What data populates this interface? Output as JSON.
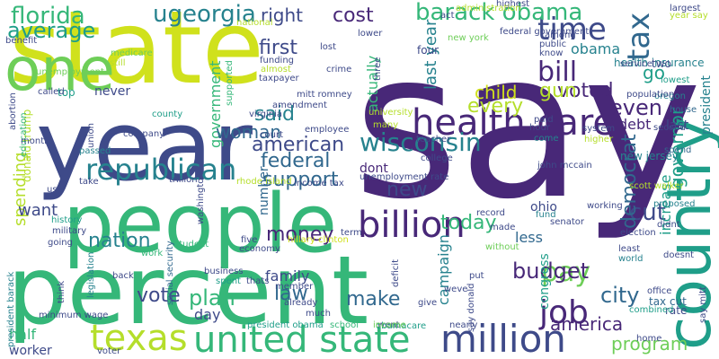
{
  "palette": {
    "background": "#ffffff",
    "c1": "#440154",
    "c2": "#482878",
    "c3": "#3e4a89",
    "c4": "#31688e",
    "c5": "#26828e",
    "c6": "#1f9e89",
    "c7": "#35b779",
    "c8": "#6ece58",
    "c9": "#b5de2b",
    "c10": "#d0e11c"
  },
  "words": [
    {
      "text": "say",
      "color": "#482878"
    },
    {
      "text": "state",
      "color": "#d0e11c"
    },
    {
      "text": "percent",
      "color": "#35b779"
    },
    {
      "text": "year",
      "color": "#3e4a89"
    },
    {
      "text": "people",
      "color": "#35b779"
    },
    {
      "text": "one",
      "color": "#6ece58"
    },
    {
      "text": "country",
      "color": "#1f9e89"
    },
    {
      "text": "health care",
      "color": "#482878"
    },
    {
      "text": "million",
      "color": "#3e4a89"
    },
    {
      "text": "united state",
      "color": "#35b779"
    },
    {
      "text": "texas",
      "color": "#b5de2b"
    },
    {
      "text": "republican",
      "color": "#26828e"
    },
    {
      "text": "billion",
      "color": "#482878"
    },
    {
      "text": "bill",
      "color": "#482878"
    },
    {
      "text": "time",
      "color": "#3e4a89"
    },
    {
      "text": "job",
      "color": "#482878"
    },
    {
      "text": "barack obama",
      "color": "#35b779"
    },
    {
      "text": "tax",
      "color": "#31688e"
    },
    {
      "text": "florida",
      "color": "#35b779"
    },
    {
      "text": "ugeorgia",
      "color": "#26828e"
    },
    {
      "text": "average",
      "color": "#1f9e89"
    },
    {
      "text": "wisconsin",
      "color": "#26828e"
    },
    {
      "text": "pay",
      "color": "#6ece58"
    },
    {
      "text": "american",
      "color": "#3e4a89"
    },
    {
      "text": "cost",
      "color": "#482878"
    },
    {
      "text": "right",
      "color": "#3e4a89"
    },
    {
      "text": "nation",
      "color": "#26828e"
    },
    {
      "text": "money",
      "color": "#482878"
    },
    {
      "text": "today",
      "color": "#35b779"
    },
    {
      "text": "budget",
      "color": "#482878"
    },
    {
      "text": "plan",
      "color": "#35b779"
    },
    {
      "text": "law",
      "color": "#31688e"
    },
    {
      "text": "vote",
      "color": "#3e4a89"
    },
    {
      "text": "make",
      "color": "#31688e"
    },
    {
      "text": "america",
      "color": "#482878"
    },
    {
      "text": "city",
      "color": "#31688e"
    },
    {
      "text": "federal",
      "color": "#31688e"
    },
    {
      "text": "support",
      "color": "#31688e"
    },
    {
      "text": "said",
      "color": "#26828e"
    },
    {
      "text": "every",
      "color": "#b5de2b"
    },
    {
      "text": "first",
      "color": "#3e4a89"
    },
    {
      "text": "government",
      "color": "#35b779"
    },
    {
      "text": "woman",
      "color": "#31688e"
    },
    {
      "text": "new",
      "color": "#3e4a89"
    },
    {
      "text": "child",
      "color": "#d0e11c"
    },
    {
      "text": "voted",
      "color": "#482878"
    },
    {
      "text": "cut",
      "color": "#3e4a89"
    },
    {
      "text": "even",
      "color": "#482878"
    },
    {
      "text": "gun",
      "color": "#b5de2b"
    },
    {
      "text": "last year",
      "color": "#26828e"
    },
    {
      "text": "obama",
      "color": "#26828e"
    },
    {
      "text": "democrat",
      "color": "#31688e"
    },
    {
      "text": "spending",
      "color": "#b5de2b"
    },
    {
      "text": "want",
      "color": "#3e4a89"
    },
    {
      "text": "increase",
      "color": "#1f9e89"
    },
    {
      "text": "governor",
      "color": "#1f9e89"
    },
    {
      "text": "program",
      "color": "#6ece58"
    },
    {
      "text": "half",
      "color": "#35b779"
    },
    {
      "text": "worker",
      "color": "#3e4a89"
    },
    {
      "text": "day",
      "color": "#3e4a89"
    },
    {
      "text": "family",
      "color": "#3e4a89"
    },
    {
      "text": "campaign",
      "color": "#26828e"
    },
    {
      "text": "congress",
      "color": "#1f9e89"
    },
    {
      "text": "dont",
      "color": "#482878"
    },
    {
      "text": "number",
      "color": "#31688e"
    },
    {
      "text": "less",
      "color": "#31688e"
    },
    {
      "text": "ohio",
      "color": "#3e4a89"
    },
    {
      "text": "debt",
      "color": "#482878"
    },
    {
      "text": "president",
      "color": "#26828e"
    },
    {
      "text": "go",
      "color": "#1f9e89"
    },
    {
      "text": "actually",
      "color": "#35b779"
    },
    {
      "text": "donald trump",
      "color": "#b5de2b"
    },
    {
      "text": "new jersey",
      "color": "#26828e"
    },
    {
      "text": "health insurance",
      "color": "#26828e"
    },
    {
      "text": "four",
      "color": "#3e4a89"
    },
    {
      "text": "never",
      "color": "#3e4a89"
    },
    {
      "text": "top",
      "color": "#1f9e89"
    },
    {
      "text": "two",
      "color": "#3e4a89"
    },
    {
      "text": "tax cut",
      "color": "#31688e"
    },
    {
      "text": "year say",
      "color": "#b5de2b"
    },
    {
      "text": "rate",
      "color": "#3e4a89"
    },
    {
      "text": "lowest",
      "color": "#1f9e89"
    },
    {
      "text": "oregon",
      "color": "#26828e"
    },
    {
      "text": "house",
      "color": "#31688e"
    },
    {
      "text": "last",
      "color": "#3e4a89"
    },
    {
      "text": "proposed",
      "color": "#26828e"
    },
    {
      "text": "spend",
      "color": "#31688e"
    },
    {
      "text": "world",
      "color": "#26828e"
    },
    {
      "text": "least",
      "color": "#3e4a89"
    },
    {
      "text": "doesnt",
      "color": "#3e4a89"
    },
    {
      "text": "didnt",
      "color": "#3e4a89"
    },
    {
      "text": "combined",
      "color": "#1f9e89"
    },
    {
      "text": "medicare",
      "color": "#6ece58"
    },
    {
      "text": "still",
      "color": "#b5de2b"
    },
    {
      "text": "benefit",
      "color": "#3e4a89"
    },
    {
      "text": "unemployment",
      "color": "#6ece58"
    },
    {
      "text": "funding",
      "color": "#3e4a89"
    },
    {
      "text": "almost",
      "color": "#b5de2b"
    },
    {
      "text": "taxpayer",
      "color": "#3e4a89"
    },
    {
      "text": "lost",
      "color": "#3e4a89"
    },
    {
      "text": "mitt romney",
      "color": "#3e4a89"
    },
    {
      "text": "amendment",
      "color": "#3e4a89"
    },
    {
      "text": "virginia",
      "color": "#3e4a89"
    },
    {
      "text": "university",
      "color": "#b5de2b"
    },
    {
      "text": "county",
      "color": "#1f9e89"
    },
    {
      "text": "company",
      "color": "#3e4a89"
    },
    {
      "text": "union",
      "color": "#3e4a89"
    },
    {
      "text": "abortion",
      "color": "#3e4a89"
    },
    {
      "text": "education",
      "color": "#35b779"
    },
    {
      "text": "month",
      "color": "#3e4a89"
    },
    {
      "text": "passed",
      "color": "#26828e"
    },
    {
      "text": "take",
      "color": "#3e4a89"
    },
    {
      "text": "use",
      "color": "#3e4a89"
    },
    {
      "text": "history",
      "color": "#1f9e89"
    },
    {
      "text": "military",
      "color": "#3e4a89"
    },
    {
      "text": "going",
      "color": "#3e4a89"
    },
    {
      "text": "trillion",
      "color": "#3e4a89"
    },
    {
      "text": "rhode island",
      "color": "#b5de2b"
    },
    {
      "text": "student",
      "color": "#35b779"
    },
    {
      "text": "five",
      "color": "#3e4a89"
    },
    {
      "text": "economy",
      "color": "#3e4a89"
    },
    {
      "text": "work",
      "color": "#35b779"
    },
    {
      "text": "hillary clinton",
      "color": "#d0e11c"
    },
    {
      "text": "senator",
      "color": "#3e4a89"
    },
    {
      "text": "fund",
      "color": "#26828e"
    },
    {
      "text": "made",
      "color": "#3e4a89"
    },
    {
      "text": "election",
      "color": "#3e4a89"
    },
    {
      "text": "record",
      "color": "#3e4a89"
    },
    {
      "text": "school",
      "color": "#35b779"
    },
    {
      "text": "went",
      "color": "#3e4a89"
    },
    {
      "text": "nearly",
      "color": "#3e4a89"
    },
    {
      "text": "say donald",
      "color": "#3e4a89"
    },
    {
      "text": "give",
      "color": "#3e4a89"
    },
    {
      "text": "weve",
      "color": "#3e4a89"
    },
    {
      "text": "put",
      "color": "#3e4a89"
    },
    {
      "text": "home",
      "color": "#3e4a89"
    },
    {
      "text": "legislation",
      "color": "#26828e"
    },
    {
      "text": "business",
      "color": "#3e4a89"
    },
    {
      "text": "spent",
      "color": "#1f9e89"
    },
    {
      "text": "thats",
      "color": "#3e4a89"
    },
    {
      "text": "member",
      "color": "#3e4a89"
    },
    {
      "text": "social security",
      "color": "#31688e"
    },
    {
      "text": "back",
      "color": "#3e4a89"
    },
    {
      "text": "think",
      "color": "#3e4a89"
    },
    {
      "text": "president barack",
      "color": "#26828e"
    },
    {
      "text": "president obama",
      "color": "#1f9e89"
    },
    {
      "text": "obamacare",
      "color": "#1f9e89"
    },
    {
      "text": "income",
      "color": "#6ece58"
    },
    {
      "text": "deficit",
      "color": "#3e4a89"
    },
    {
      "text": "hour",
      "color": "#3e4a89"
    },
    {
      "text": "paid",
      "color": "#3e4a89"
    },
    {
      "text": "come",
      "color": "#26828e"
    },
    {
      "text": "higher",
      "color": "#b5de2b"
    },
    {
      "text": "system",
      "color": "#3e4a89"
    },
    {
      "text": "college",
      "color": "#3e4a89"
    },
    {
      "text": "teacher",
      "color": "#3e4a89"
    },
    {
      "text": "term",
      "color": "#3e4a89"
    },
    {
      "text": "without",
      "color": "#6ece58"
    },
    {
      "text": "service",
      "color": "#3e4a89"
    },
    {
      "text": "public",
      "color": "#3e4a89"
    },
    {
      "text": "know",
      "color": "#3e4a89"
    },
    {
      "text": "among",
      "color": "#3e4a89"
    },
    {
      "text": "highest",
      "color": "#3e4a89"
    },
    {
      "text": "largest",
      "color": "#3e4a89"
    },
    {
      "text": "national",
      "color": "#b5de2b"
    },
    {
      "text": "supported",
      "color": "#35b779"
    },
    {
      "text": "three",
      "color": "#3e4a89"
    },
    {
      "text": "many",
      "color": "#b5de2b"
    },
    {
      "text": "employee",
      "color": "#3e4a89"
    },
    {
      "text": "income tax",
      "color": "#3e4a89"
    },
    {
      "text": "john mccain",
      "color": "#3e4a89"
    },
    {
      "text": "population",
      "color": "#3e4a89"
    },
    {
      "text": "second",
      "color": "#3e4a89"
    },
    {
      "text": "working",
      "color": "#3e4a89"
    },
    {
      "text": "lower",
      "color": "#3e4a89"
    },
    {
      "text": "crime",
      "color": "#3e4a89"
    },
    {
      "text": "called",
      "color": "#3e4a89"
    },
    {
      "text": "court",
      "color": "#3e4a89"
    },
    {
      "text": "new york",
      "color": "#6ece58"
    },
    {
      "text": "already",
      "color": "#3e4a89"
    },
    {
      "text": "much",
      "color": "#3e4a89"
    },
    {
      "text": "say mitt",
      "color": "#3e4a89"
    },
    {
      "text": "office",
      "color": "#3e4a89"
    },
    {
      "text": "voter",
      "color": "#3e4a89"
    },
    {
      "text": "federal government",
      "color": "#3e4a89"
    },
    {
      "text": "administration",
      "color": "#b5de2b"
    },
    {
      "text": "act",
      "color": "#3e4a89"
    },
    {
      "text": "washington",
      "color": "#3e4a89"
    },
    {
      "text": "minimum wage",
      "color": "#3e4a89"
    },
    {
      "text": "scott walker",
      "color": "#b5de2b"
    },
    {
      "text": "unemployment rate",
      "color": "#3e4a89"
    }
  ]
}
